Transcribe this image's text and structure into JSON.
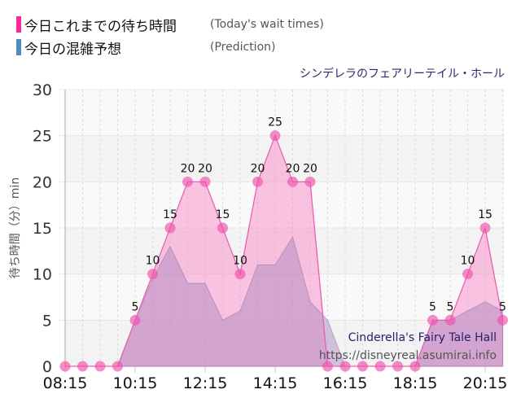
{
  "legend": {
    "items": [
      {
        "label_jp": "今日これまでの待ち時間",
        "label_en": "(Today's wait times)",
        "color": "#f72a9a"
      },
      {
        "label_jp": "今日の混雑予想",
        "label_en": "(Prediction)",
        "color": "#4f8bbd"
      }
    ]
  },
  "attraction_name_jp": "シンデレラのフェアリーテイル・ホール",
  "watermark": {
    "name_en": "Cinderella's Fairy Tale Hall",
    "url": "https://disneyreal.asumirai.info"
  },
  "chart_data": {
    "type": "area",
    "title": "シンデレラのフェアリーテイル・ホール",
    "xlabel": "",
    "ylabel": "待ち時間（分）min",
    "ylim": [
      0,
      30
    ],
    "yticks": [
      0,
      5,
      10,
      15,
      20,
      25,
      30
    ],
    "xtick_labels": [
      "08:15",
      "10:15",
      "12:15",
      "14:15",
      "16:15",
      "18:15",
      "20:15"
    ],
    "grid": true,
    "legend_position": "top-left",
    "x": [
      "08:15",
      "08:45",
      "09:15",
      "09:45",
      "10:15",
      "10:45",
      "11:15",
      "11:45",
      "12:15",
      "12:45",
      "13:15",
      "13:45",
      "14:15",
      "14:45",
      "15:15",
      "15:45",
      "16:15",
      "16:45",
      "17:15",
      "17:45",
      "18:15",
      "18:45",
      "19:15",
      "19:45",
      "20:15",
      "20:45"
    ],
    "series": [
      {
        "name": "今日これまでの待ち時間 (Today's wait times)",
        "color": "#f06bb5",
        "values": [
          0,
          0,
          0,
          0,
          5,
          10,
          15,
          20,
          20,
          15,
          10,
          20,
          25,
          20,
          20,
          0,
          0,
          0,
          0,
          0,
          0,
          5,
          5,
          10,
          15,
          5
        ],
        "data_labels": [
          null,
          null,
          null,
          null,
          "5",
          "10",
          "15",
          "20",
          "20",
          "15",
          "10",
          "20",
          "25",
          "20",
          "20",
          null,
          null,
          null,
          null,
          null,
          null,
          "5",
          "5",
          "10",
          "15",
          "5"
        ]
      },
      {
        "name": "今日の混雑予想 (Prediction)",
        "color": "#b58cc4",
        "values": [
          0,
          0,
          0,
          0,
          5,
          9.5,
          13,
          9,
          9,
          5,
          6,
          11,
          11,
          14,
          7,
          5,
          0,
          0,
          0,
          0,
          0,
          5,
          5,
          6,
          7,
          6
        ]
      }
    ]
  }
}
